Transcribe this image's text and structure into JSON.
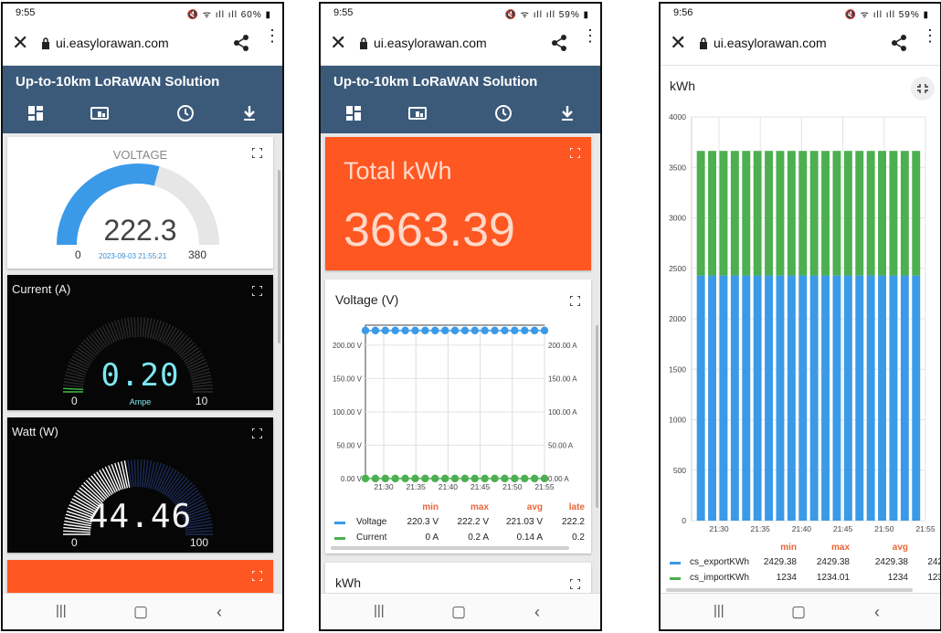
{
  "screens": [
    {
      "status": {
        "time": "9:55",
        "battery": "60%"
      },
      "url": "ui.easylorawan.com",
      "app_title": "Up-to-10km LoRaWAN Solution",
      "voltage_gauge": {
        "title": "VOLTAGE",
        "value": "222.3",
        "min": "0",
        "max": "380",
        "timestamp": "2023-09-03 21:55:21",
        "fraction": 0.585
      },
      "current_gauge": {
        "title": "Current (A)",
        "value": "0.20",
        "min": "0",
        "max": "10",
        "unit": "Ampe",
        "fraction": 0.02
      },
      "watt_gauge": {
        "title": "Watt (W)",
        "value": "44.46",
        "min": "0",
        "max": "100",
        "fraction": 0.445
      }
    },
    {
      "status": {
        "time": "9:55",
        "battery": "59%"
      },
      "url": "ui.easylorawan.com",
      "app_title": "Up-to-10km LoRaWAN Solution",
      "total_kwh": {
        "title": "Total kWh",
        "value": "3663.39"
      },
      "voltage_chart": {
        "title": "Voltage (V)",
        "legend_headers": [
          "min",
          "max",
          "avg",
          "late"
        ],
        "legend_rows": [
          {
            "name": "Voltage",
            "min": "220.3 V",
            "max": "222.2 V",
            "avg": "221.03 V",
            "latest": "222.2",
            "color": "#3a9ae8"
          },
          {
            "name": "Current",
            "min": "0 A",
            "max": "0.2 A",
            "avg": "0.14 A",
            "latest": "0.2",
            "color": "#4caf50"
          }
        ]
      },
      "kwh_card_title": "kWh"
    },
    {
      "status": {
        "time": "9:56",
        "battery": "59%"
      },
      "url": "ui.easylorawan.com",
      "kwh_chart": {
        "title": "kWh",
        "legend_headers": [
          "min",
          "max",
          "avg",
          "l"
        ],
        "legend_rows": [
          {
            "name": "cs_exportKWh",
            "min": "2429.38",
            "max": "2429.38",
            "avg": "2429.38",
            "latest": "242",
            "color": "#3a9ae8"
          },
          {
            "name": "cs_importKWh",
            "min": "1234",
            "max": "1234.01",
            "avg": "1234",
            "latest": "123",
            "color": "#4caf50"
          }
        ]
      }
    }
  ],
  "chart_data": [
    {
      "type": "line",
      "title": "Voltage (V)",
      "x_ticks": [
        "21:30",
        "21:35",
        "21:40",
        "21:45",
        "21:50",
        "21:55"
      ],
      "y_ticks_left": [
        "0.00 V",
        "50.00 V",
        "100.00 V",
        "150.00 V",
        "200.00 V"
      ],
      "y_ticks_right": [
        "0.00 A",
        "50.00 A",
        "100.00 A",
        "150.00 A",
        "200.00 A"
      ],
      "ylim": [
        0,
        230
      ],
      "series": [
        {
          "name": "Voltage",
          "color": "#3a9ae8",
          "values": [
            222,
            222,
            222,
            222,
            222,
            222,
            222,
            222,
            222,
            222,
            222,
            222,
            222,
            222,
            222,
            222,
            222,
            222,
            222
          ]
        },
        {
          "name": "Current",
          "color": "#4caf50",
          "values": [
            0.2,
            0.2,
            0.2,
            0.2,
            0.2,
            0.2,
            0.2,
            0.2,
            0.2,
            0.2,
            0.2,
            0.2,
            0.2,
            0.2,
            0.2,
            0.2,
            0.2,
            0.2,
            0.2
          ]
        }
      ]
    },
    {
      "type": "bar",
      "stacked": true,
      "title": "kWh",
      "x_ticks": [
        "21:30",
        "21:35",
        "21:40",
        "21:45",
        "21:50",
        "21:55"
      ],
      "y_ticks": [
        "0",
        "500",
        "1000",
        "1500",
        "2000",
        "2500",
        "3000",
        "3500",
        "4000"
      ],
      "ylim": [
        0,
        4000
      ],
      "bar_count": 20,
      "series": [
        {
          "name": "cs_exportKWh",
          "color": "#3a9ae8",
          "value": 2429.38
        },
        {
          "name": "cs_importKWh",
          "color": "#4caf50",
          "value": 1234
        }
      ]
    }
  ]
}
